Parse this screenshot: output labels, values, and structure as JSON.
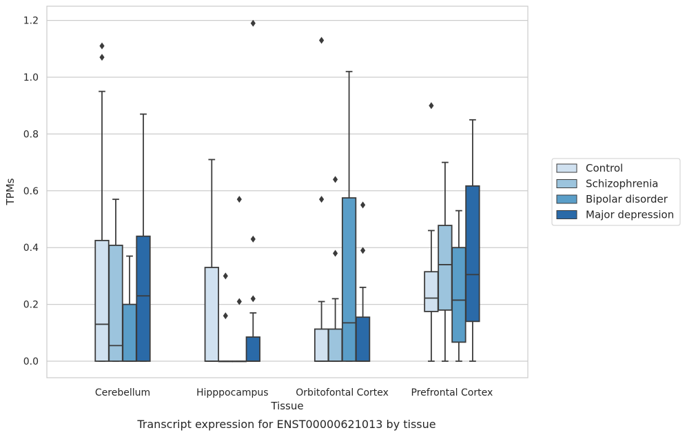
{
  "caption": "Transcript expression for ENST00000621013 by tissue",
  "chart_data": {
    "type": "box",
    "xlabel": "Tissue",
    "ylabel": "TPMs",
    "ylim": [
      -0.06,
      1.25
    ],
    "yticks": [
      0.0,
      0.2,
      0.4,
      0.6,
      0.8,
      1.0,
      1.2
    ],
    "ytick_labels": [
      "0.0",
      "0.2",
      "0.4",
      "0.6",
      "0.8",
      "1.0",
      "1.2"
    ],
    "grid": true,
    "legend_position": "right",
    "categories": [
      "Cerebellum",
      "Hipppocampus",
      "Orbitofontal Cortex",
      "Prefrontal Cortex"
    ],
    "series": [
      {
        "name": "Control",
        "color": "#d0e1f0",
        "boxes": [
          {
            "low": 0.0,
            "q1": 0.0,
            "median": 0.13,
            "q3": 0.425,
            "high": 0.95,
            "outliers": [
              1.07,
              1.11
            ]
          },
          {
            "low": 0.0,
            "q1": 0.0,
            "median": 0.0,
            "q3": 0.33,
            "high": 0.71,
            "outliers": []
          },
          {
            "low": 0.0,
            "q1": 0.0,
            "median": 0.0,
            "q3": 0.113,
            "high": 0.21,
            "outliers": [
              0.57,
              1.13
            ]
          },
          {
            "low": 0.0,
            "q1": 0.175,
            "median": 0.222,
            "q3": 0.315,
            "high": 0.46,
            "outliers": [
              0.9
            ]
          }
        ]
      },
      {
        "name": "Schizophrenia",
        "color": "#9cc4dd",
        "boxes": [
          {
            "low": 0.0,
            "q1": 0.0,
            "median": 0.055,
            "q3": 0.408,
            "high": 0.57,
            "outliers": []
          },
          {
            "low": 0.0,
            "q1": 0.0,
            "median": 0.0,
            "q3": 0.0,
            "high": 0.0,
            "outliers": [
              0.16,
              0.3
            ]
          },
          {
            "low": 0.0,
            "q1": 0.0,
            "median": 0.0,
            "q3": 0.113,
            "high": 0.22,
            "outliers": [
              0.38,
              0.64
            ]
          },
          {
            "low": 0.0,
            "q1": 0.18,
            "median": 0.34,
            "q3": 0.478,
            "high": 0.7,
            "outliers": []
          }
        ]
      },
      {
        "name": "Bipolar disorder",
        "color": "#5a9ec8",
        "boxes": [
          {
            "low": 0.0,
            "q1": 0.0,
            "median": 0.0,
            "q3": 0.2,
            "high": 0.37,
            "outliers": []
          },
          {
            "low": 0.0,
            "q1": 0.0,
            "median": 0.0,
            "q3": 0.0,
            "high": 0.0,
            "outliers": [
              0.21,
              0.57
            ]
          },
          {
            "low": 0.0,
            "q1": 0.0,
            "median": 0.135,
            "q3": 0.575,
            "high": 1.02,
            "outliers": []
          },
          {
            "low": 0.0,
            "q1": 0.067,
            "median": 0.215,
            "q3": 0.4,
            "high": 0.53,
            "outliers": []
          }
        ]
      },
      {
        "name": "Major depression",
        "color": "#2a6aa8",
        "boxes": [
          {
            "low": 0.0,
            "q1": 0.0,
            "median": 0.23,
            "q3": 0.44,
            "high": 0.87,
            "outliers": []
          },
          {
            "low": 0.0,
            "q1": 0.0,
            "median": 0.0,
            "q3": 0.085,
            "high": 0.17,
            "outliers": [
              0.22,
              0.43,
              1.19
            ]
          },
          {
            "low": 0.0,
            "q1": 0.0,
            "median": 0.0,
            "q3": 0.155,
            "high": 0.26,
            "outliers": [
              0.39,
              0.55
            ]
          },
          {
            "low": 0.0,
            "q1": 0.14,
            "median": 0.305,
            "q3": 0.617,
            "high": 0.85,
            "outliers": []
          }
        ]
      }
    ]
  }
}
